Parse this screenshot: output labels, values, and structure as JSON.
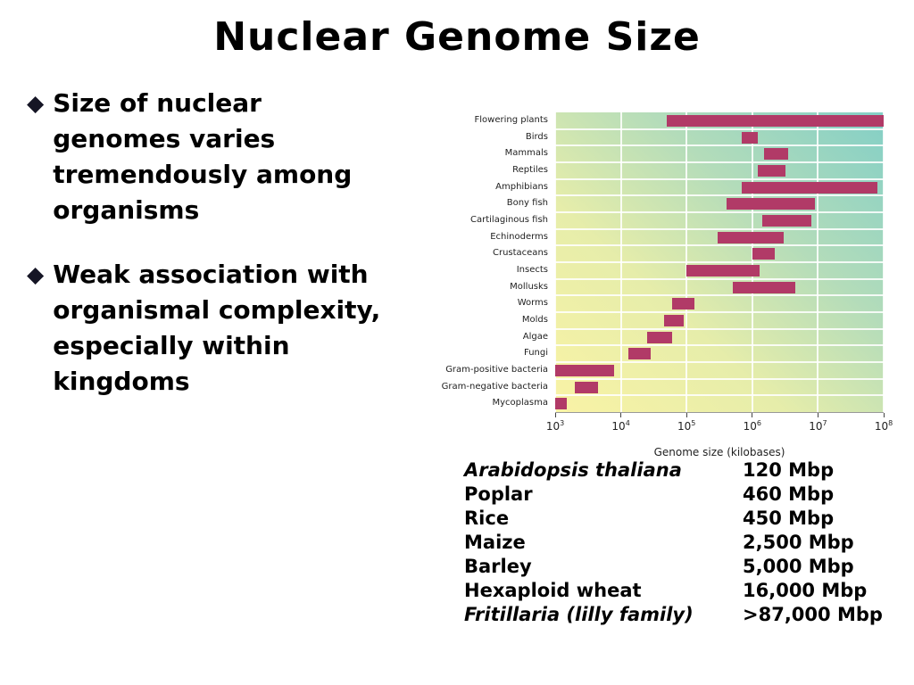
{
  "slide": {
    "title": "Nuclear Genome Size",
    "bullet_glyph": "◆",
    "bullets": [
      "Size of nuclear\ngenomes varies\ntremendously among\norganisms",
      "Weak association with\norganismal complexity,\nespecially within\nkingdoms"
    ]
  },
  "chart_data": {
    "type": "bar",
    "subtype": "horizontal-range-log",
    "title": "",
    "xlabel": "Genome size (kilobases)",
    "x_scale": "log10",
    "xlim_log10": [
      3,
      8
    ],
    "x_tick_base": "10",
    "x_tick_exponents": [
      3,
      4,
      5,
      6,
      7,
      8
    ],
    "bar_color": "#b13a67",
    "grid": true,
    "legend": "none",
    "categories": [
      "Flowering plants",
      "Birds",
      "Mammals",
      "Reptiles",
      "Amphibians",
      "Bony fish",
      "Cartilaginous fish",
      "Echinoderms",
      "Crustaceans",
      "Insects",
      "Mollusks",
      "Worms",
      "Molds",
      "Algae",
      "Fungi",
      "Gram-positive bacteria",
      "Gram-negative bacteria",
      "Mycoplasma"
    ],
    "ranges_kb": [
      [
        50000,
        100000000
      ],
      [
        700000,
        1200000
      ],
      [
        1500000,
        3500000
      ],
      [
        1200000,
        3200000
      ],
      [
        700000,
        80000000
      ],
      [
        400000,
        9000000
      ],
      [
        1400000,
        8000000
      ],
      [
        300000,
        3000000
      ],
      [
        1000000,
        2200000
      ],
      [
        100000,
        1300000
      ],
      [
        500000,
        4500000
      ],
      [
        60000,
        130000
      ],
      [
        45000,
        90000
      ],
      [
        25000,
        60000
      ],
      [
        13000,
        28000
      ],
      [
        1000,
        8000
      ],
      [
        2000,
        4500
      ],
      [
        700,
        1500
      ]
    ]
  },
  "species_table": {
    "rows": [
      {
        "name": "Arabidopsis thaliana",
        "italic": true,
        "value": "120 Mbp"
      },
      {
        "name": "Poplar",
        "italic": false,
        "value": "460 Mbp"
      },
      {
        "name": "Rice",
        "italic": false,
        "value": "450 Mbp"
      },
      {
        "name": "Maize",
        "italic": false,
        "value": "2,500 Mbp"
      },
      {
        "name": "Barley",
        "italic": false,
        "value": "5,000 Mbp"
      },
      {
        "name": "Hexaploid wheat",
        "italic": false,
        "value": "16,000 Mbp"
      },
      {
        "name": "Fritillaria (lilly family)",
        "italic": true,
        "value": ">87,000 Mbp"
      }
    ]
  }
}
